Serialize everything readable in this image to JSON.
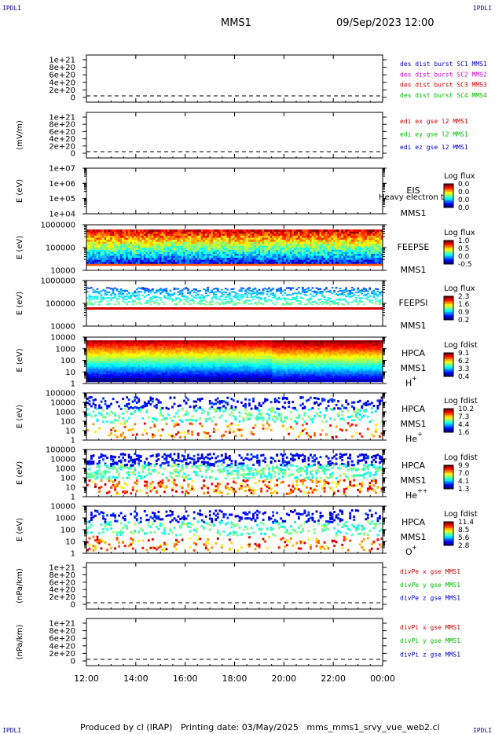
{
  "header": {
    "logo_left": "IPDLI",
    "logo_right": "IPDLI",
    "spacecraft": "MMS1",
    "datetime": "09/Sep/2023 12:00"
  },
  "footer": {
    "text": "Produced by cl (IRAP)   Printing date: 03/May/2025   mms_mms1_srvy_vue_web2.cl",
    "logo_left": "IPDLI",
    "logo_right": "IPDLI"
  },
  "time_axis": {
    "ticks": [
      "12:00",
      "14:00",
      "16:00",
      "18:00",
      "20:00",
      "22:00",
      "00:00"
    ]
  },
  "colors": {
    "black": "#000000",
    "blue": "#0000cc",
    "magenta": "#cc00cc",
    "red": "#cc0000",
    "green": "#00bb00"
  },
  "chart_data": [
    {
      "type": "line",
      "id": "dist",
      "ylabel": "",
      "yticks": [
        "1e+21",
        "8e+20",
        "6e+20",
        "4e+20",
        "2e+20",
        "0"
      ],
      "legend": [
        {
          "text": "des dist burst SC1 MMS1",
          "color": "#0000cc"
        },
        {
          "text": "des dist burst SC2 MMS2",
          "color": "#cc00cc"
        },
        {
          "text": "des dist burst SC3 MMS3",
          "color": "#cc0000"
        },
        {
          "text": "des dist burst SC4 MMS4",
          "color": "#00bb00"
        }
      ]
    },
    {
      "type": "line",
      "id": "edi",
      "ylabel": "(mV/m)",
      "yticks": [
        "1e+21",
        "8e+20",
        "6e+20",
        "4e+20",
        "2e+20",
        "0"
      ],
      "legend": [
        {
          "text": "edi ex gse l2 MMS1",
          "color": "#cc0000"
        },
        {
          "text": "edi ey gse l2 MMS1",
          "color": "#00bb00"
        },
        {
          "text": "edi ez gse l2 MMS1",
          "color": "#0000cc"
        }
      ]
    },
    {
      "type": "heatmap",
      "id": "eis",
      "ylabel": "E (eV)",
      "yticks": [
        "1e+07",
        "1e+06",
        "1e+05",
        "1e+04"
      ],
      "labels": [
        "EIS",
        "MMS1"
      ],
      "overlay": "Heavy electron to",
      "colorbar": {
        "title": "Log flux",
        "ticks": [
          "0.0",
          "0.0",
          "0.0",
          "0.0"
        ]
      }
    },
    {
      "type": "heatmap",
      "id": "feepse",
      "ylabel": "E (eV)",
      "yticks": [
        "1000000",
        "100000",
        "10000"
      ],
      "labels": [
        "FEEPSE",
        "MMS1"
      ],
      "colorbar": {
        "title": "Log flux",
        "ticks": [
          "1.0",
          "0.5",
          "0.0",
          "-0.5"
        ]
      }
    },
    {
      "type": "heatmap",
      "id": "feepsi",
      "ylabel": "E (eV)",
      "yticks": [
        "1000000",
        "100000",
        "10000"
      ],
      "labels": [
        "FEEPSI",
        "MMS1"
      ],
      "colorbar": {
        "title": "Log flux",
        "ticks": [
          "2.3",
          "1.6",
          "0.9",
          "0.2"
        ]
      }
    },
    {
      "type": "heatmap",
      "id": "hpca_h",
      "ylabel": "E (eV)",
      "yticks": [
        "10000",
        "1000",
        "100",
        "10",
        "1"
      ],
      "labels": [
        "HPCA",
        "MMS1",
        "H",
        "+"
      ],
      "colorbar": {
        "title": "Log fdist",
        "ticks": [
          "9.1",
          "6.2",
          "3.3",
          "0.4"
        ]
      }
    },
    {
      "type": "heatmap",
      "id": "hpca_he",
      "ylabel": "E (eV)",
      "yticks": [
        "100000",
        "10000",
        "1000",
        "100",
        "10",
        "1"
      ],
      "labels": [
        "HPCA",
        "MMS1",
        "He",
        "+"
      ],
      "colorbar": {
        "title": "Log fdist",
        "ticks": [
          "10.2",
          "7.3",
          "4.4",
          "1.6"
        ]
      }
    },
    {
      "type": "heatmap",
      "id": "hpca_hepp",
      "ylabel": "E (eV)",
      "yticks": [
        "100000",
        "10000",
        "1000",
        "100",
        "10",
        "1"
      ],
      "labels": [
        "HPCA",
        "MMS1",
        "He",
        "++"
      ],
      "colorbar": {
        "title": "Log fdist",
        "ticks": [
          "9.9",
          "7.0",
          "4.1",
          "1.3"
        ]
      }
    },
    {
      "type": "heatmap",
      "id": "hpca_o",
      "ylabel": "E (eV)",
      "yticks": [
        "10000",
        "1000",
        "100",
        "10",
        "1"
      ],
      "labels": [
        "HPCA",
        "MMS1",
        "O",
        "+"
      ],
      "colorbar": {
        "title": "Log fdist",
        "ticks": [
          "11.4",
          "8.5",
          "5.6",
          "2.8"
        ]
      }
    },
    {
      "type": "line",
      "id": "divpe",
      "ylabel": "(nPa/km)",
      "yticks": [
        "1e+21",
        "8e+20",
        "6e+20",
        "4e+20",
        "2e+20",
        "0"
      ],
      "legend": [
        {
          "text": "divPe x gse MMS1",
          "color": "#cc0000"
        },
        {
          "text": "divPe y gse MMS1",
          "color": "#00bb00"
        },
        {
          "text": "divPe z gse MMS1",
          "color": "#0000cc"
        }
      ]
    },
    {
      "type": "line",
      "id": "divpi",
      "ylabel": "(nPa/km)",
      "yticks": [
        "1e+21",
        "8e+20",
        "6e+20",
        "4e+20",
        "2e+20",
        "0"
      ],
      "legend": [
        {
          "text": "divPi x gse MMS1",
          "color": "#cc0000"
        },
        {
          "text": "divPi y gse MMS1",
          "color": "#00bb00"
        },
        {
          "text": "divPi z gse MMS1",
          "color": "#0000cc"
        }
      ]
    }
  ]
}
